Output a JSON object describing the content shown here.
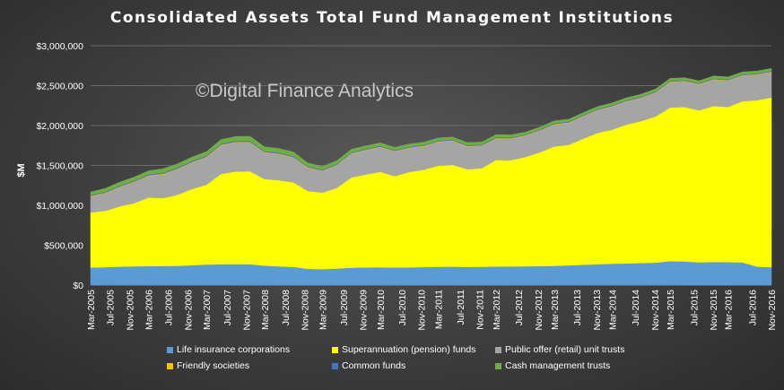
{
  "chart_data": {
    "type": "area",
    "stacked": true,
    "title": "Consolidated Assets Total Fund Management Institutions",
    "watermark": "©Digital Finance Analytics",
    "ylabel": "$M",
    "xlabel": "",
    "ylim": [
      0,
      3000000
    ],
    "yticks": [
      0,
      500000,
      1000000,
      1500000,
      2000000,
      2500000,
      3000000
    ],
    "ytick_labels": [
      "$0",
      "$500,000",
      "$1,000,000",
      "$1,500,000",
      "$2,000,000",
      "$2,500,000",
      "$3,000,000"
    ],
    "x_tick_labels": [
      "Mar-2005",
      "Jul-2005",
      "Nov-2005",
      "Mar-2006",
      "Jul-2006",
      "Nov-2006",
      "Mar-2007",
      "Jul-2007",
      "Nov-2007",
      "Mar-2008",
      "Jul-2008",
      "Nov-2008",
      "Mar-2009",
      "Jul-2009",
      "Nov-2009",
      "Mar-2010",
      "Jul-2010",
      "Nov-2010",
      "Mar-2011",
      "Jul-2011",
      "Nov-2011",
      "Mar-2012",
      "Jul-2012",
      "Nov-2012",
      "Mar-2013",
      "Jul-2013",
      "Nov-2013",
      "Mar-2014",
      "Jul-2014",
      "Nov-2014",
      "Mar-2015",
      "Jul-2015",
      "Nov-2015",
      "Mar-2016",
      "Jul-2016",
      "Nov-2016"
    ],
    "grid": true,
    "legend_position": "bottom",
    "x": [
      "Mar-2005",
      "Jun-2005",
      "Sep-2005",
      "Dec-2005",
      "Mar-2006",
      "Jun-2006",
      "Sep-2006",
      "Dec-2006",
      "Mar-2007",
      "Jun-2007",
      "Sep-2007",
      "Dec-2007",
      "Mar-2008",
      "Jun-2008",
      "Sep-2008",
      "Dec-2008",
      "Mar-2009",
      "Jun-2009",
      "Sep-2009",
      "Dec-2009",
      "Mar-2010",
      "Jun-2010",
      "Sep-2010",
      "Dec-2010",
      "Mar-2011",
      "Jun-2011",
      "Sep-2011",
      "Dec-2011",
      "Mar-2012",
      "Jun-2012",
      "Sep-2012",
      "Dec-2012",
      "Mar-2013",
      "Jun-2013",
      "Sep-2013",
      "Dec-2013",
      "Mar-2014",
      "Jun-2014",
      "Sep-2014",
      "Dec-2014",
      "Mar-2015",
      "Jun-2015",
      "Sep-2015",
      "Dec-2015",
      "Mar-2016",
      "Jun-2016",
      "Sep-2016",
      "Dec-2016"
    ],
    "series": [
      {
        "name": "Life insurance corporations",
        "color": "#5b9bd5",
        "values": [
          220000,
          225000,
          232000,
          236000,
          238000,
          240000,
          242000,
          250000,
          258000,
          262000,
          264000,
          262000,
          245000,
          235000,
          228000,
          205000,
          200000,
          208000,
          218000,
          222000,
          224000,
          220000,
          223000,
          226000,
          230000,
          232000,
          228000,
          230000,
          233000,
          235000,
          236000,
          238000,
          242000,
          248000,
          255000,
          262000,
          268000,
          272000,
          276000,
          282000,
          300000,
          298000,
          285000,
          290000,
          288000,
          285000,
          232000,
          225000
        ]
      },
      {
        "name": "Superannuation (pension) funds",
        "color": "#ffff00",
        "values": [
          690000,
          705000,
          755000,
          790000,
          860000,
          850000,
          890000,
          955000,
          1000000,
          1130000,
          1160000,
          1165000,
          1085000,
          1080000,
          1060000,
          975000,
          960000,
          1010000,
          1130000,
          1165000,
          1195000,
          1145000,
          1195000,
          1220000,
          1265000,
          1275000,
          1225000,
          1235000,
          1335000,
          1330000,
          1370000,
          1425000,
          1495000,
          1510000,
          1580000,
          1645000,
          1680000,
          1740000,
          1780000,
          1830000,
          1925000,
          1935000,
          1905000,
          1955000,
          1945000,
          2020000,
          2085000,
          2125000
        ]
      },
      {
        "name": "Public offer (retail) unit trusts",
        "color": "#a5a5a5",
        "values": [
          200000,
          220000,
          240000,
          262000,
          270000,
          300000,
          320000,
          330000,
          345000,
          360000,
          365000,
          362000,
          330000,
          325000,
          310000,
          290000,
          270000,
          285000,
          300000,
          305000,
          310000,
          310000,
          300000,
          295000,
          300000,
          300000,
          285000,
          280000,
          270000,
          270000,
          265000,
          270000,
          275000,
          275000,
          280000,
          285000,
          290000,
          290000,
          290000,
          300000,
          320000,
          320000,
          325000,
          330000,
          330000,
          320000,
          320000,
          320000
        ]
      },
      {
        "name": "Friendly societies",
        "color": "#ffc000",
        "values": [
          7000,
          7000,
          7000,
          7000,
          7000,
          7000,
          7000,
          7000,
          7000,
          7000,
          7000,
          7000,
          7000,
          7000,
          7000,
          6000,
          6000,
          6000,
          6000,
          6000,
          6000,
          6000,
          6000,
          6000,
          6000,
          6000,
          6000,
          6000,
          6000,
          6000,
          6000,
          6000,
          6000,
          6000,
          6000,
          6000,
          6000,
          6000,
          6000,
          6000,
          6000,
          6000,
          6000,
          6000,
          6000,
          6000,
          6000,
          6000
        ]
      },
      {
        "name": "Common funds",
        "color": "#4472c4",
        "values": [
          10000,
          12000,
          12000,
          12000,
          12000,
          13000,
          13000,
          13000,
          13000,
          13000,
          13000,
          13000,
          12000,
          12000,
          11000,
          10000,
          10000,
          10000,
          10000,
          10000,
          10000,
          10000,
          10000,
          10000,
          10000,
          10000,
          10000,
          10000,
          10000,
          10000,
          10000,
          10000,
          10000,
          10000,
          10000,
          10000,
          10000,
          10000,
          10000,
          10000,
          10000,
          10000,
          10000,
          10000,
          10000,
          10000,
          10000,
          10000
        ]
      },
      {
        "name": "Cash management trusts",
        "color": "#70ad47",
        "values": [
          40000,
          42000,
          44000,
          46000,
          46000,
          48000,
          48000,
          50000,
          50000,
          52000,
          54000,
          56000,
          55000,
          53000,
          52000,
          45000,
          42000,
          40000,
          38000,
          38000,
          37000,
          36000,
          35000,
          34000,
          34000,
          33000,
          32000,
          32000,
          32000,
          31000,
          30000,
          30000,
          30000,
          30000,
          30000,
          30000,
          30000,
          30000,
          30000,
          30000,
          30000,
          30000,
          30000,
          30000,
          30000,
          30000,
          30000,
          30000
        ]
      }
    ]
  }
}
